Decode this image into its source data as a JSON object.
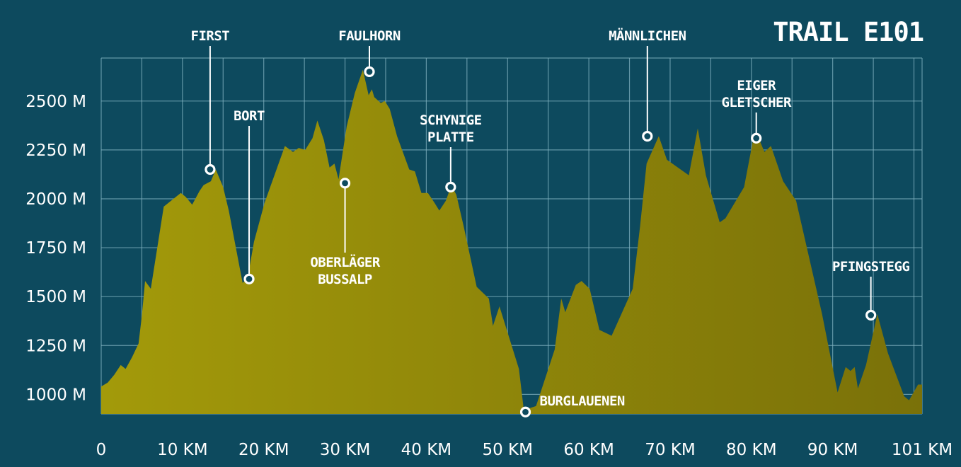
{
  "chart_data": {
    "type": "area",
    "title": "TRAIL E101",
    "xlabel": "",
    "ylabel": "",
    "xlim": [
      0,
      101
    ],
    "ylim": [
      900,
      2720
    ],
    "grid": true,
    "x_ticks": [
      {
        "value": 0,
        "label": "0"
      },
      {
        "value": 10,
        "label": "10 KM"
      },
      {
        "value": 20,
        "label": "20 KM"
      },
      {
        "value": 30,
        "label": "30 KM"
      },
      {
        "value": 40,
        "label": "40 KM"
      },
      {
        "value": 50,
        "label": "50 KM"
      },
      {
        "value": 60,
        "label": "60 KM"
      },
      {
        "value": 70,
        "label": "70 KM"
      },
      {
        "value": 80,
        "label": "80 KM"
      },
      {
        "value": 90,
        "label": "90 KM"
      },
      {
        "value": 101,
        "label": "101 KM"
      }
    ],
    "y_ticks": [
      {
        "value": 1000,
        "label": "1000 M"
      },
      {
        "value": 1250,
        "label": "1250 M"
      },
      {
        "value": 1500,
        "label": "1500 M"
      },
      {
        "value": 1750,
        "label": "1750 M"
      },
      {
        "value": 2000,
        "label": "2000 M"
      },
      {
        "value": 2250,
        "label": "2250 M"
      },
      {
        "value": 2500,
        "label": "2500 M"
      }
    ],
    "profile": {
      "x": [
        0,
        0.8,
        1.6,
        2.4,
        3,
        3.8,
        4.6,
        5,
        5.4,
        6.1,
        7.7,
        9.8,
        10.4,
        11.2,
        12.1,
        12.6,
        13.5,
        14.1,
        15,
        15.7,
        17.4,
        18,
        18.8,
        20.1,
        22.6,
        23.6,
        24.3,
        25.1,
        26,
        26.6,
        27.4,
        28.1,
        28.7,
        29.2,
        30.2,
        31.2,
        32.2,
        32.9,
        33.3,
        33.6,
        34.4,
        34.9,
        35.5,
        36.4,
        37.9,
        38.6,
        39.4,
        40.2,
        41,
        41.6,
        42.4,
        43.1,
        43.7,
        44.6,
        46.2,
        47.7,
        48.2,
        49,
        51.4,
        52,
        53.5,
        55.8,
        56.6,
        57.1,
        58.4,
        59.1,
        60.1,
        61.3,
        62.8,
        65.4,
        66.3,
        67.1,
        68.6,
        69.6,
        72.3,
        73.4,
        74.4,
        76.1,
        76.8,
        79.1,
        80.2,
        80.7,
        81.6,
        82.4,
        83.9,
        85.5,
        88.7,
        90.6,
        91.6,
        92.2,
        92.7,
        93.1,
        94.1,
        95.5,
        96.8,
        98.8,
        99.4,
        100.5,
        101
      ],
      "y": [
        1040,
        1060,
        1100,
        1150,
        1130,
        1190,
        1260,
        1400,
        1580,
        1540,
        1960,
        2030,
        2010,
        1970,
        2040,
        2070,
        2090,
        2150,
        2060,
        1940,
        1570,
        1590,
        1780,
        1980,
        2270,
        2240,
        2260,
        2250,
        2310,
        2400,
        2300,
        2160,
        2180,
        2100,
        2370,
        2540,
        2660,
        2530,
        2560,
        2520,
        2490,
        2500,
        2460,
        2320,
        2150,
        2140,
        2030,
        2030,
        1980,
        1940,
        1990,
        2070,
        2020,
        1860,
        1550,
        1490,
        1350,
        1450,
        1130,
        920,
        940,
        1230,
        1490,
        1420,
        1560,
        1580,
        1540,
        1330,
        1300,
        1540,
        1860,
        2180,
        2320,
        2200,
        2120,
        2360,
        2120,
        1880,
        1900,
        2060,
        2300,
        2330,
        2240,
        2270,
        2090,
        1990,
        1410,
        1010,
        1140,
        1120,
        1140,
        1030,
        1150,
        1410,
        1210,
        990,
        970,
        1050,
        1050
      ]
    },
    "waypoints": [
      {
        "name": "FIRST",
        "label_lines": [
          "FIRST"
        ],
        "x": 13.4,
        "y": 2150,
        "label_side": "above"
      },
      {
        "name": "BORT",
        "label_lines": [
          "BORT"
        ],
        "x": 18.2,
        "y": 1590,
        "label_side": "above"
      },
      {
        "name": "FAULHORN",
        "label_lines": [
          "FAULHORN"
        ],
        "x": 33.0,
        "y": 2650,
        "label_side": "above"
      },
      {
        "name": "OBERLÄGER BUSSALP",
        "label_lines": [
          "OBERLÄGER",
          "BUSSALP"
        ],
        "x": 30.0,
        "y": 2080,
        "label_side": "below"
      },
      {
        "name": "SCHYNIGE PLATTE",
        "label_lines": [
          "SCHYNIGE",
          "PLATTE"
        ],
        "x": 43.0,
        "y": 2060,
        "label_side": "above"
      },
      {
        "name": "BURGLAUENEN",
        "label_lines": [
          "BURGLAUENEN"
        ],
        "x": 52.2,
        "y": 910,
        "label_side": "right"
      },
      {
        "name": "MÄNNLICHEN",
        "label_lines": [
          "MÄNNLICHEN"
        ],
        "x": 67.2,
        "y": 2320,
        "label_side": "above"
      },
      {
        "name": "EIGER GLETSCHER",
        "label_lines": [
          "EIGER",
          "GLETSCHER"
        ],
        "x": 80.6,
        "y": 2310,
        "label_side": "above"
      },
      {
        "name": "PFINGSTEGG",
        "label_lines": [
          "PFINGSTEGG"
        ],
        "x": 94.7,
        "y": 1405,
        "label_side": "above"
      }
    ],
    "colors": {
      "background": "#0d4a5e",
      "fill_light": "#a39a0a",
      "fill_dark": "#7a7109",
      "grid": "#7fb0bf",
      "text": "#ffffff"
    }
  }
}
